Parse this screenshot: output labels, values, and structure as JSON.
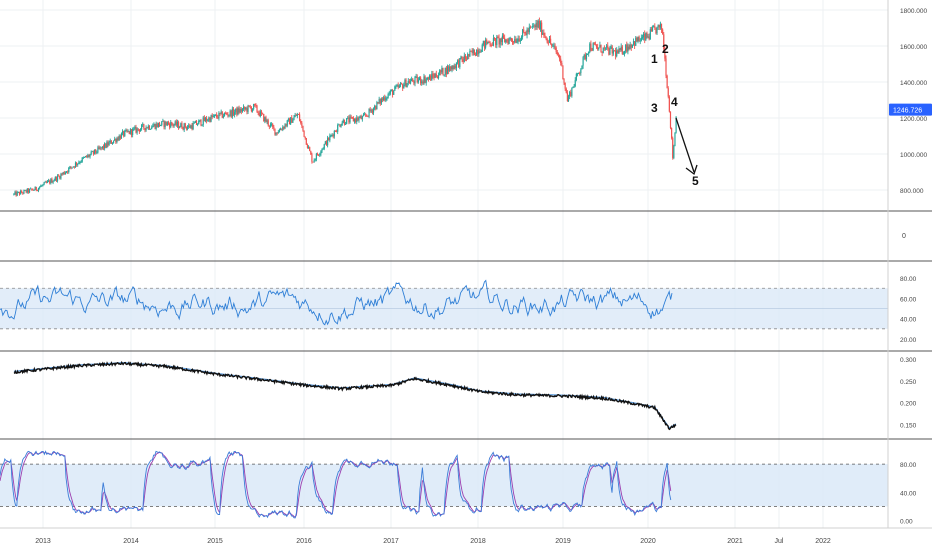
{
  "colors": {
    "up": "#26a69a",
    "down": "#ef5350",
    "rsi_line": "#2f7fd6",
    "band_fill": "#dbe9f8",
    "ratio_line": "#111111",
    "ratio_ma": "#4a90d9",
    "stoch_k": "#3d7dd8",
    "stoch_d": "#9c3fb0",
    "price_badge": "#2962ff",
    "grid": "#eef0f3",
    "divider": "#555555",
    "axis_text": "#444444"
  },
  "chart_data": [
    {
      "type": "candlestick",
      "panel": "price",
      "x": [
        "2012-09",
        "2012-12",
        "2013-03",
        "2013-06",
        "2013-09",
        "2013-12",
        "2014-03",
        "2014-06",
        "2014-09",
        "2014-12",
        "2015-03",
        "2015-06",
        "2015-09",
        "2015-12",
        "2016-02",
        "2016-06",
        "2016-09",
        "2016-12",
        "2017-03",
        "2017-06",
        "2017-09",
        "2017-12",
        "2018-02",
        "2018-06",
        "2018-09",
        "2018-12",
        "2019-01",
        "2019-04",
        "2019-06",
        "2019-08",
        "2019-10",
        "2019-12",
        "2020-01",
        "2020-02",
        "2020-03",
        "2020-03b",
        "2020-04"
      ],
      "close": [
        775,
        805,
        870,
        960,
        1030,
        1110,
        1150,
        1170,
        1150,
        1200,
        1230,
        1260,
        1120,
        1220,
        960,
        1180,
        1200,
        1320,
        1400,
        1420,
        1480,
        1560,
        1620,
        1640,
        1720,
        1530,
        1300,
        1600,
        1580,
        1560,
        1620,
        1650,
        1690,
        1700,
        1250,
        975,
        1246.726
      ],
      "ylim": [
        700,
        1850
      ],
      "yticks": [
        800,
        1000,
        1200,
        1400,
        1600,
        1800
      ],
      "last_value_label": "1246.726",
      "annotations": [
        "1",
        "2",
        "3",
        "4",
        "5"
      ]
    },
    {
      "type": "line",
      "panel": "volume",
      "yticks_labels": [
        "0"
      ]
    },
    {
      "type": "line",
      "panel": "rsi",
      "ylim": [
        15,
        90
      ],
      "yticks": [
        "80.00",
        "60.00",
        "40.00",
        "20.00"
      ],
      "band": [
        30,
        70
      ]
    },
    {
      "type": "line",
      "panel": "ratio",
      "ylim": [
        0.13,
        0.305
      ],
      "yticks": [
        "0.300",
        "0.250",
        "0.200",
        "0.150"
      ],
      "x": [
        "2012-09",
        "2013-06",
        "2013-12",
        "2014-06",
        "2015-01",
        "2015-06",
        "2016-01",
        "2016-06",
        "2017-01",
        "2017-04",
        "2017-09",
        "2018-01",
        "2018-06",
        "2019-01",
        "2019-06",
        "2019-10",
        "2020-01",
        "2020-03",
        "2020-04"
      ],
      "values": [
        0.27,
        0.285,
        0.29,
        0.283,
        0.265,
        0.255,
        0.24,
        0.232,
        0.24,
        0.255,
        0.24,
        0.225,
        0.218,
        0.215,
        0.21,
        0.198,
        0.188,
        0.14,
        0.15
      ]
    },
    {
      "type": "line",
      "panel": "stochastic",
      "ylim": [
        -5,
        100
      ],
      "yticks": [
        "80.00",
        "40.00",
        "0.00"
      ],
      "band": [
        20,
        80
      ]
    }
  ],
  "x_axis": {
    "labels": [
      "2013",
      "2014",
      "2015",
      "2016",
      "2017",
      "2018",
      "2019",
      "2020",
      "2021",
      "Jul",
      "2022"
    ]
  }
}
